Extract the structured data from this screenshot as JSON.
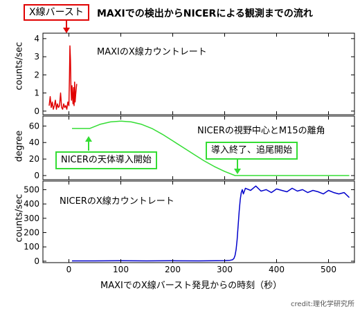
{
  "header": {
    "burst_label": "X線バースト",
    "title": "MAXIでの検出からNICERによる観測までの流れ",
    "credit": "credit:理化学研究所"
  },
  "colors": {
    "maxi": "#e00000",
    "angle": "#33dd33",
    "nicer": "#0000cc",
    "annotation_border": "#33dd33"
  },
  "chart_data": [
    {
      "type": "line",
      "panel": "maxi",
      "label": "MAXIのX線カウントレート",
      "ylabel": "counts/sec",
      "xlim": [
        -50,
        550
      ],
      "ylim": [
        -0.2,
        4.3
      ],
      "yticks": [
        0,
        1,
        2,
        3,
        4
      ],
      "color": "#e00000",
      "x": [
        -38,
        -36,
        -34,
        -32,
        -30,
        -28,
        -26,
        -24,
        -22,
        -20,
        -18,
        -16,
        -14,
        -12,
        -10,
        -8,
        -6,
        -4,
        -2,
        0,
        1,
        2,
        3,
        4,
        5,
        6,
        7,
        8,
        9,
        10,
        11,
        12,
        13,
        14,
        15
      ],
      "y": [
        0.3,
        0.8,
        0.2,
        0.5,
        0.1,
        0.3,
        0.6,
        0.1,
        0.4,
        0.2,
        0.3,
        1.0,
        0.2,
        0.1,
        0.4,
        0.2,
        0.3,
        0.1,
        0.5,
        0.3,
        1.8,
        3.6,
        2.8,
        1.2,
        0.6,
        1.4,
        0.8,
        0.4,
        1.3,
        0.3,
        1.6,
        0.5,
        0.9,
        1.2,
        1.5
      ]
    },
    {
      "type": "line",
      "panel": "angle",
      "label": "NICERの視野中心とM15の離角",
      "ylabel": "degree",
      "xlim": [
        -50,
        550
      ],
      "ylim": [
        -5,
        72
      ],
      "yticks": [
        0,
        20,
        40,
        60
      ],
      "color": "#33dd33",
      "x": [
        6,
        40,
        60,
        80,
        100,
        120,
        140,
        160,
        180,
        200,
        220,
        240,
        260,
        280,
        300,
        320,
        330,
        400,
        540
      ],
      "y": [
        57,
        57,
        62,
        65,
        66,
        65,
        62,
        57,
        50,
        42,
        34,
        26,
        18,
        11,
        5,
        0,
        0,
        0,
        0
      ]
    },
    {
      "type": "line",
      "panel": "nicer",
      "label": "NICERのX線カウントレート",
      "ylabel": "counts/sec",
      "xlim": [
        -50,
        550
      ],
      "ylim": [
        -10,
        560
      ],
      "yticks": [
        0,
        100,
        200,
        300,
        400,
        500
      ],
      "color": "#0000cc",
      "x": [
        6,
        50,
        100,
        150,
        200,
        250,
        300,
        310,
        315,
        318,
        320,
        322,
        324,
        326,
        328,
        330,
        332,
        334,
        336,
        340,
        350,
        360,
        370,
        380,
        390,
        400,
        410,
        420,
        430,
        440,
        450,
        460,
        470,
        480,
        490,
        500,
        510,
        520,
        530,
        540
      ],
      "y": [
        2,
        2,
        3,
        2,
        3,
        2,
        4,
        6,
        10,
        20,
        40,
        80,
        150,
        250,
        350,
        430,
        480,
        500,
        470,
        510,
        495,
        525,
        490,
        500,
        480,
        505,
        495,
        485,
        510,
        490,
        500,
        480,
        495,
        485,
        470,
        495,
        480,
        470,
        480,
        445
      ]
    }
  ],
  "xaxis": {
    "label": "MAXIでのX線バースト発見からの時刻（秒）",
    "ticks": [
      0,
      100,
      200,
      300,
      400,
      500
    ]
  },
  "annotations": {
    "nicer_start": "NICERの天体導入開始",
    "tracking_start": "導入終了、追尾開始"
  }
}
